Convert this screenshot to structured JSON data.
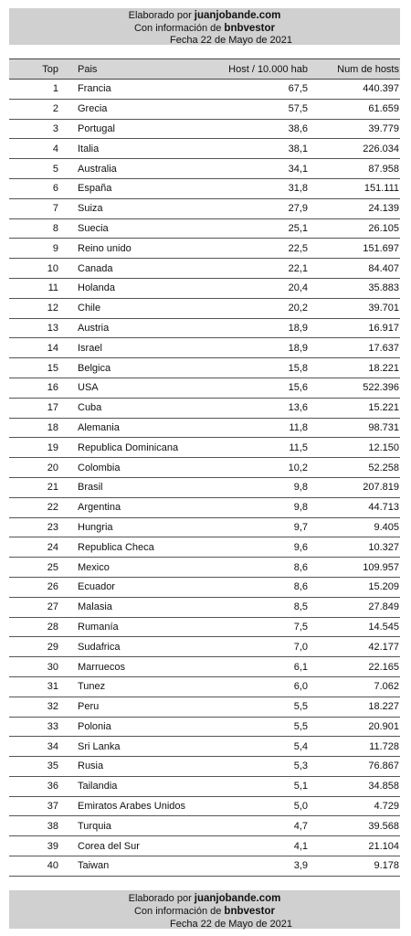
{
  "banner": {
    "line1_prefix": "Elaborado por ",
    "line1_bold": "juanjobande.com",
    "line2_prefix": "Con información de ",
    "line2_bold": "bnbvestor",
    "line3": "Fecha 22 de Mayo de 2021"
  },
  "table": {
    "headers": {
      "top": "Top",
      "pais": "Pais",
      "host": "Host / 10.000 hab",
      "num": "Num de hosts"
    },
    "rows": [
      {
        "top": "1",
        "pais": "Francia",
        "host": "67,5",
        "num": "440.397"
      },
      {
        "top": "2",
        "pais": "Grecia",
        "host": "57,5",
        "num": "61.659"
      },
      {
        "top": "3",
        "pais": "Portugal",
        "host": "38,6",
        "num": "39.779"
      },
      {
        "top": "4",
        "pais": "Italia",
        "host": "38,1",
        "num": "226.034"
      },
      {
        "top": "5",
        "pais": "Australia",
        "host": "34,1",
        "num": "87.958"
      },
      {
        "top": "6",
        "pais": "España",
        "host": "31,8",
        "num": "151.111"
      },
      {
        "top": "7",
        "pais": "Suiza",
        "host": "27,9",
        "num": "24.139"
      },
      {
        "top": "8",
        "pais": "Suecia",
        "host": "25,1",
        "num": "26.105"
      },
      {
        "top": "9",
        "pais": "Reino unido",
        "host": "22,5",
        "num": "151.697"
      },
      {
        "top": "10",
        "pais": "Canada",
        "host": "22,1",
        "num": "84.407"
      },
      {
        "top": "11",
        "pais": "Holanda",
        "host": "20,4",
        "num": "35.883"
      },
      {
        "top": "12",
        "pais": "Chile",
        "host": "20,2",
        "num": "39.701"
      },
      {
        "top": "13",
        "pais": "Austria",
        "host": "18,9",
        "num": "16.917"
      },
      {
        "top": "14",
        "pais": "Israel",
        "host": "18,9",
        "num": "17.637"
      },
      {
        "top": "15",
        "pais": "Belgica",
        "host": "15,8",
        "num": "18.221"
      },
      {
        "top": "16",
        "pais": "USA",
        "host": "15,6",
        "num": "522.396"
      },
      {
        "top": "17",
        "pais": "Cuba",
        "host": "13,6",
        "num": "15.221"
      },
      {
        "top": "18",
        "pais": "Alemania",
        "host": "11,8",
        "num": "98.731"
      },
      {
        "top": "19",
        "pais": "Republica Dominicana",
        "host": "11,5",
        "num": "12.150"
      },
      {
        "top": "20",
        "pais": "Colombia",
        "host": "10,2",
        "num": "52.258"
      },
      {
        "top": "21",
        "pais": "Brasil",
        "host": "9,8",
        "num": "207.819"
      },
      {
        "top": "22",
        "pais": "Argentina",
        "host": "9,8",
        "num": "44.713"
      },
      {
        "top": "23",
        "pais": "Hungria",
        "host": "9,7",
        "num": "9.405"
      },
      {
        "top": "24",
        "pais": "Republica Checa",
        "host": "9,6",
        "num": "10.327"
      },
      {
        "top": "25",
        "pais": "Mexico",
        "host": "8,6",
        "num": "109.957"
      },
      {
        "top": "26",
        "pais": "Ecuador",
        "host": "8,6",
        "num": "15.209"
      },
      {
        "top": "27",
        "pais": "Malasia",
        "host": "8,5",
        "num": "27.849"
      },
      {
        "top": "28",
        "pais": "Rumanía",
        "host": "7,5",
        "num": "14.545"
      },
      {
        "top": "29",
        "pais": "Sudafrica",
        "host": "7,0",
        "num": "42.177"
      },
      {
        "top": "30",
        "pais": "Marruecos",
        "host": "6,1",
        "num": "22.165"
      },
      {
        "top": "31",
        "pais": "Tunez",
        "host": "6,0",
        "num": "7.062"
      },
      {
        "top": "32",
        "pais": "Peru",
        "host": "5,5",
        "num": "18.227"
      },
      {
        "top": "33",
        "pais": "Polonia",
        "host": "5,5",
        "num": "20.901"
      },
      {
        "top": "34",
        "pais": "Sri Lanka",
        "host": "5,4",
        "num": "11.728"
      },
      {
        "top": "35",
        "pais": "Rusia",
        "host": "5,3",
        "num": "76.867"
      },
      {
        "top": "36",
        "pais": "Tailandia",
        "host": "5,1",
        "num": "34.858"
      },
      {
        "top": "37",
        "pais": "Emiratos Arabes Unidos",
        "host": "5,0",
        "num": "4.729"
      },
      {
        "top": "38",
        "pais": "Turquia",
        "host": "4,7",
        "num": "39.568"
      },
      {
        "top": "39",
        "pais": "Corea del Sur",
        "host": "4,1",
        "num": "21.104"
      },
      {
        "top": "40",
        "pais": "Taiwan",
        "host": "3,9",
        "num": "9.178"
      }
    ]
  }
}
